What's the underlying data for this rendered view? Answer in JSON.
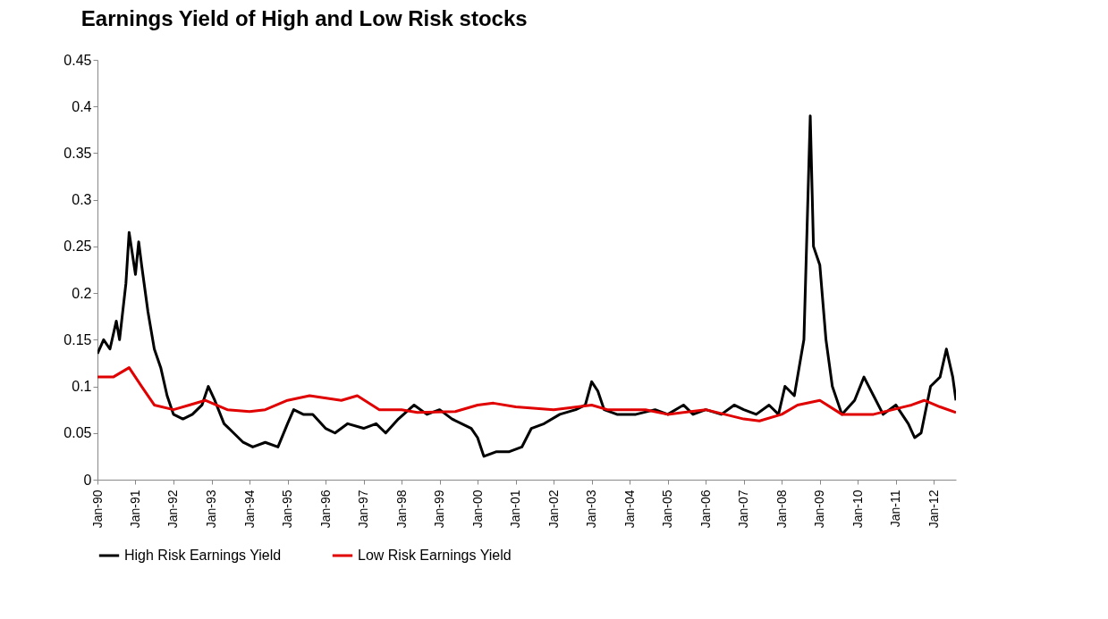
{
  "chart_data": {
    "type": "line",
    "title": "Earnings Yield of High and Low Risk stocks",
    "xlim": [
      "1990-01",
      "2012-08"
    ],
    "xticks": [
      {
        "value": "1990-01",
        "label": "Jan-90"
      },
      {
        "value": "1991-01",
        "label": "Jan-91"
      },
      {
        "value": "1992-01",
        "label": "Jan-92"
      },
      {
        "value": "1993-01",
        "label": "Jan-93"
      },
      {
        "value": "1994-01",
        "label": "Jan-94"
      },
      {
        "value": "1995-01",
        "label": "Jan-95"
      },
      {
        "value": "1996-01",
        "label": "Jan-96"
      },
      {
        "value": "1997-01",
        "label": "Jan-97"
      },
      {
        "value": "1998-01",
        "label": "Jan-98"
      },
      {
        "value": "1999-01",
        "label": "Jan-99"
      },
      {
        "value": "2000-01",
        "label": "Jan-00"
      },
      {
        "value": "2001-01",
        "label": "Jan-01"
      },
      {
        "value": "2002-01",
        "label": "Jan-02"
      },
      {
        "value": "2003-01",
        "label": "Jan-03"
      },
      {
        "value": "2004-01",
        "label": "Jan-04"
      },
      {
        "value": "2005-01",
        "label": "Jan-05"
      },
      {
        "value": "2006-01",
        "label": "Jan-06"
      },
      {
        "value": "2007-01",
        "label": "Jan-07"
      },
      {
        "value": "2008-01",
        "label": "Jan-08"
      },
      {
        "value": "2009-01",
        "label": "Jan-09"
      },
      {
        "value": "2010-01",
        "label": "Jan-10"
      },
      {
        "value": "2011-01",
        "label": "Jan-11"
      },
      {
        "value": "2012-01",
        "label": "Jan-12"
      }
    ],
    "ylim": [
      0,
      0.45
    ],
    "yticks": [
      0,
      0.05,
      0.1,
      0.15,
      0.2,
      0.25,
      0.3,
      0.35,
      0.4,
      0.45
    ],
    "legend": "bottom",
    "series": [
      {
        "name": "High Risk Earnings Yield",
        "color": "#000000",
        "x": [
          "1990-01",
          "1990-03",
          "1990-05",
          "1990-07",
          "1990-08",
          "1990-10",
          "1990-11",
          "1991-01",
          "1991-02",
          "1991-03",
          "1991-05",
          "1991-07",
          "1991-09",
          "1991-11",
          "1992-01",
          "1992-04",
          "1992-07",
          "1992-10",
          "1992-12",
          "1993-02",
          "1993-05",
          "1993-08",
          "1993-11",
          "1994-02",
          "1994-06",
          "1994-10",
          "1995-01",
          "1995-03",
          "1995-06",
          "1995-09",
          "1996-01",
          "1996-04",
          "1996-08",
          "1997-01",
          "1997-05",
          "1997-08",
          "1997-12",
          "1998-05",
          "1998-09",
          "1999-01",
          "1999-05",
          "1999-08",
          "1999-11",
          "2000-01",
          "2000-03",
          "2000-07",
          "2000-11",
          "2001-03",
          "2001-06",
          "2001-10",
          "2002-03",
          "2002-08",
          "2002-11",
          "2003-01",
          "2003-03",
          "2003-05",
          "2003-09",
          "2004-03",
          "2004-09",
          "2005-01",
          "2005-06",
          "2005-09",
          "2006-01",
          "2006-06",
          "2006-10",
          "2007-01",
          "2007-05",
          "2007-09",
          "2007-12",
          "2008-02",
          "2008-05",
          "2008-07",
          "2008-08",
          "2008-10",
          "2008-11",
          "2009-01",
          "2009-03",
          "2009-05",
          "2009-08",
          "2009-12",
          "2010-03",
          "2010-06",
          "2010-09",
          "2011-01",
          "2011-05",
          "2011-07",
          "2011-09",
          "2011-12",
          "2012-03",
          "2012-05",
          "2012-07",
          "2012-08"
        ],
        "values": [
          0.135,
          0.15,
          0.14,
          0.17,
          0.15,
          0.21,
          0.265,
          0.22,
          0.255,
          0.23,
          0.18,
          0.14,
          0.12,
          0.09,
          0.07,
          0.065,
          0.07,
          0.08,
          0.1,
          0.085,
          0.06,
          0.05,
          0.04,
          0.035,
          0.04,
          0.035,
          0.06,
          0.075,
          0.07,
          0.07,
          0.055,
          0.05,
          0.06,
          0.055,
          0.06,
          0.05,
          0.065,
          0.08,
          0.07,
          0.075,
          0.065,
          0.06,
          0.055,
          0.045,
          0.025,
          0.03,
          0.03,
          0.035,
          0.055,
          0.06,
          0.07,
          0.075,
          0.08,
          0.105,
          0.095,
          0.075,
          0.07,
          0.07,
          0.075,
          0.07,
          0.08,
          0.07,
          0.075,
          0.07,
          0.08,
          0.075,
          0.07,
          0.08,
          0.07,
          0.1,
          0.09,
          0.13,
          0.15,
          0.39,
          0.25,
          0.23,
          0.15,
          0.1,
          0.07,
          0.085,
          0.11,
          0.09,
          0.07,
          0.08,
          0.06,
          0.045,
          0.05,
          0.1,
          0.11,
          0.14,
          0.11,
          0.085
        ]
      },
      {
        "name": "Low Risk Earnings Yield",
        "color": "#e00000",
        "x": [
          "1990-01",
          "1990-06",
          "1990-11",
          "1991-03",
          "1991-07",
          "1992-01",
          "1992-06",
          "1992-11",
          "1993-06",
          "1994-01",
          "1994-06",
          "1995-01",
          "1995-08",
          "1996-06",
          "1996-11",
          "1997-06",
          "1998-01",
          "1998-06",
          "1999-06",
          "2000-01",
          "2000-06",
          "2001-01",
          "2002-01",
          "2003-01",
          "2003-06",
          "2004-06",
          "2005-01",
          "2006-01",
          "2007-01",
          "2007-06",
          "2008-01",
          "2008-06",
          "2009-01",
          "2009-08",
          "2010-06",
          "2011-06",
          "2011-10",
          "2012-03",
          "2012-08"
        ],
        "values": [
          0.11,
          0.11,
          0.12,
          0.1,
          0.08,
          0.075,
          0.08,
          0.085,
          0.075,
          0.073,
          0.075,
          0.085,
          0.09,
          0.085,
          0.09,
          0.075,
          0.075,
          0.072,
          0.073,
          0.08,
          0.082,
          0.078,
          0.075,
          0.08,
          0.075,
          0.075,
          0.07,
          0.075,
          0.065,
          0.063,
          0.07,
          0.08,
          0.085,
          0.07,
          0.07,
          0.08,
          0.085,
          0.078,
          0.072
        ]
      }
    ]
  }
}
